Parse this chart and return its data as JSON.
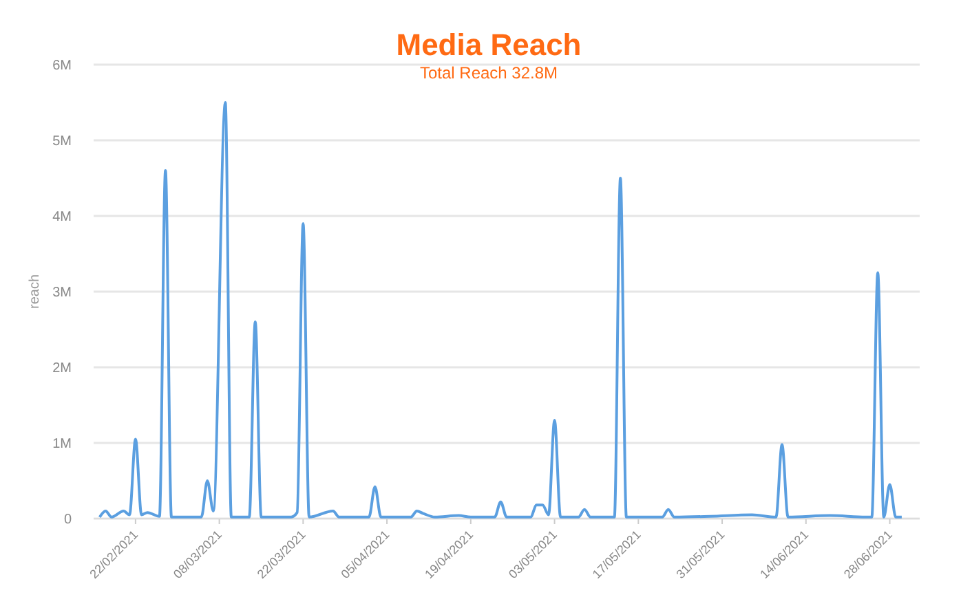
{
  "chart_data": {
    "type": "line",
    "title": "Media Reach",
    "subtitle": "Total Reach 32.8M",
    "ylabel": "reach",
    "grid": "y",
    "x": [
      "2021-02-16",
      "2021-02-17",
      "2021-02-18",
      "2021-02-20",
      "2021-02-21",
      "2021-02-22",
      "2021-02-23",
      "2021-02-24",
      "2021-02-26",
      "2021-02-27",
      "2021-02-28",
      "2021-03-05",
      "2021-03-06",
      "2021-03-07",
      "2021-03-09",
      "2021-03-10",
      "2021-03-13",
      "2021-03-14",
      "2021-03-15",
      "2021-03-20",
      "2021-03-21",
      "2021-03-22",
      "2021-03-23",
      "2021-03-27",
      "2021-03-28",
      "2021-04-02",
      "2021-04-03",
      "2021-04-04",
      "2021-04-09",
      "2021-04-10",
      "2021-04-11",
      "2021-04-13",
      "2021-04-17",
      "2021-04-19",
      "2021-04-23",
      "2021-04-24",
      "2021-04-25",
      "2021-04-29",
      "2021-04-30",
      "2021-05-01",
      "2021-05-02",
      "2021-05-03",
      "2021-05-04",
      "2021-05-07",
      "2021-05-08",
      "2021-05-09",
      "2021-05-13",
      "2021-05-14",
      "2021-05-15",
      "2021-05-21",
      "2021-05-22",
      "2021-05-23",
      "2021-05-29",
      "2021-06-05",
      "2021-06-09",
      "2021-06-10",
      "2021-06-11",
      "2021-06-18",
      "2021-06-24",
      "2021-06-25",
      "2021-06-26",
      "2021-06-27",
      "2021-06-28",
      "2021-06-29",
      "2021-06-30"
    ],
    "series": [
      {
        "color": "#5b9fe0",
        "values": [
          0.02,
          0.1,
          0.02,
          0.1,
          0.05,
          1.05,
          0.05,
          0.08,
          0.03,
          4.6,
          0.02,
          0.02,
          0.5,
          0.1,
          5.5,
          0.02,
          0.02,
          2.6,
          0.02,
          0.02,
          0.08,
          3.9,
          0.02,
          0.1,
          0.02,
          0.02,
          0.42,
          0.02,
          0.02,
          0.1,
          0.07,
          0.02,
          0.04,
          0.02,
          0.02,
          0.22,
          0.02,
          0.02,
          0.18,
          0.18,
          0.05,
          1.3,
          0.02,
          0.02,
          0.12,
          0.02,
          0.02,
          4.5,
          0.02,
          0.02,
          0.12,
          0.02,
          0.03,
          0.05,
          0.02,
          0.98,
          0.02,
          0.04,
          0.02,
          0.02,
          3.25,
          0.02,
          0.45,
          0.02,
          0.02
        ]
      }
    ],
    "xlim": [
      "2021-02-15",
      "2021-07-03"
    ],
    "xticks": [
      {
        "value": "2021-02-22",
        "label": "22/02/2021"
      },
      {
        "value": "2021-03-08",
        "label": "08/03/2021"
      },
      {
        "value": "2021-03-22",
        "label": "22/03/2021"
      },
      {
        "value": "2021-04-05",
        "label": "05/04/2021"
      },
      {
        "value": "2021-04-19",
        "label": "19/04/2021"
      },
      {
        "value": "2021-05-03",
        "label": "03/05/2021"
      },
      {
        "value": "2021-05-17",
        "label": "17/05/2021"
      },
      {
        "value": "2021-05-31",
        "label": "31/05/2021"
      },
      {
        "value": "2021-06-14",
        "label": "14/06/2021"
      },
      {
        "value": "2021-06-28",
        "label": "28/06/2021"
      }
    ],
    "ylim": [
      0,
      6
    ],
    "yticks": [
      0,
      {
        "value": 1,
        "label": "1M"
      },
      {
        "value": 2,
        "label": "2M"
      },
      {
        "value": 3,
        "label": "3M"
      },
      {
        "value": 4,
        "label": "4M"
      },
      {
        "value": 5,
        "label": "5M"
      },
      {
        "value": 6,
        "label": "6M"
      }
    ]
  }
}
